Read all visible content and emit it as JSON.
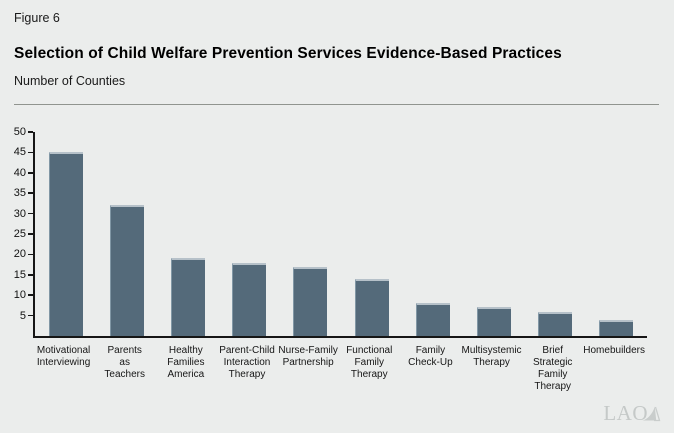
{
  "header": {
    "figure_label": "Figure 6",
    "title": "Selection of Child Welfare Prevention Services Evidence-Based Practices",
    "subtitle": "Number of Counties"
  },
  "chart_data": {
    "type": "bar",
    "title": "Selection of Child Welfare Prevention Services Evidence-Based Practices",
    "ylabel": "Number of Counties",
    "xlabel": "",
    "categories": [
      "Motivational\nInterviewing",
      "Parents\nas\nTeachers",
      "Healthy\nFamilies\nAmerica",
      "Parent-Child\nInteraction\nTherapy",
      "Nurse-Family\nPartnership",
      "Functional\nFamily\nTherapy",
      "Family\nCheck-Up",
      "Multisystemic\nTherapy",
      "Brief\nStrategic\nFamily\nTherapy",
      "Homebuilders"
    ],
    "values": [
      45,
      32,
      19,
      18,
      17,
      14,
      8,
      7,
      6,
      4
    ],
    "ylim": [
      0,
      50
    ],
    "ytick_step": 5,
    "grid": false,
    "legend": "none",
    "colors": {
      "bar": "#546a7a",
      "bar_top_highlight": "#b6c1c9",
      "background": "#ebedec",
      "axis": "#161616"
    }
  },
  "footer": {
    "logo_text": "LAO"
  }
}
